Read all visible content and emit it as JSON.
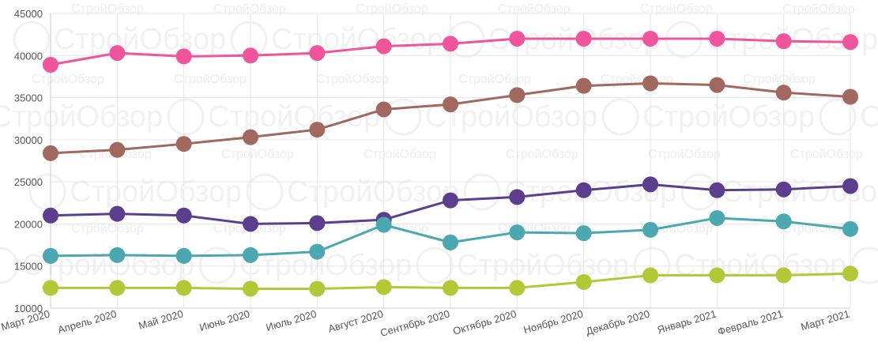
{
  "watermark": "СтройОбзор",
  "chart_data": {
    "type": "line",
    "title": "",
    "xlabel": "",
    "ylabel": "",
    "categories": [
      "Март 2020",
      "Апрель 2020",
      "Май 2020",
      "Июнь 2020",
      "Июль 2020",
      "Август 2020",
      "Сентябрь 2020",
      "Октябрь 2020",
      "Ноябрь 2020",
      "Декабрь 2020",
      "Январь 2021",
      "Февраль 2021",
      "Март 2021"
    ],
    "ylim": [
      10000,
      45000
    ],
    "yticks": [
      10000,
      15000,
      20000,
      25000,
      30000,
      35000,
      40000,
      45000
    ],
    "grid": true,
    "legend": "none",
    "series": [
      {
        "name": "series-pink",
        "color": "#f0549c",
        "values": [
          38900,
          40300,
          39900,
          40000,
          40300,
          41100,
          41400,
          42000,
          42000,
          42000,
          42000,
          41700,
          41600
        ]
      },
      {
        "name": "series-brown",
        "color": "#a0685e",
        "values": [
          28400,
          28800,
          29500,
          30300,
          31200,
          33600,
          34200,
          35300,
          36400,
          36700,
          36500,
          35600,
          35100
        ]
      },
      {
        "name": "series-purple",
        "color": "#5b3e8e",
        "values": [
          21000,
          21200,
          21000,
          20000,
          20100,
          20500,
          22800,
          23200,
          24000,
          24700,
          24000,
          24100,
          24500
        ]
      },
      {
        "name": "series-teal",
        "color": "#4ba8b0",
        "values": [
          16200,
          16300,
          16200,
          16300,
          16700,
          19900,
          17800,
          19000,
          18900,
          19300,
          20700,
          20300,
          19400
        ]
      },
      {
        "name": "series-lime",
        "color": "#b4c737",
        "values": [
          12400,
          12400,
          12400,
          12300,
          12300,
          12500,
          12400,
          12400,
          13100,
          13900,
          13900,
          13900,
          14100
        ]
      }
    ]
  }
}
